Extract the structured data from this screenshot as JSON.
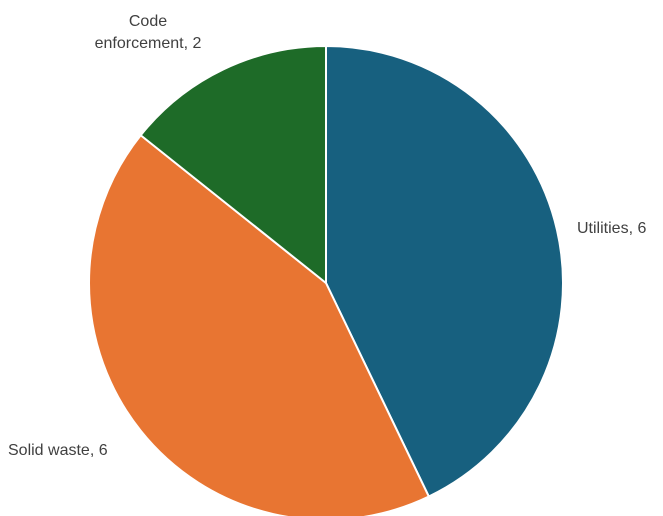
{
  "chart_data": {
    "type": "pie",
    "slices": [
      {
        "label": "Utilities",
        "value": 6,
        "display": "Utilities, 6",
        "color": "#17607f"
      },
      {
        "label": "Solid waste",
        "value": 6,
        "display": "Solid waste, 6",
        "color": "#e87532"
      },
      {
        "label": "Code enforcement",
        "value": 2,
        "display_lines": [
          "Code",
          "enforcement, 2"
        ],
        "color": "#1e6b28"
      }
    ],
    "start_angle_deg": 0,
    "direction": "clockwise",
    "legend": "none"
  }
}
